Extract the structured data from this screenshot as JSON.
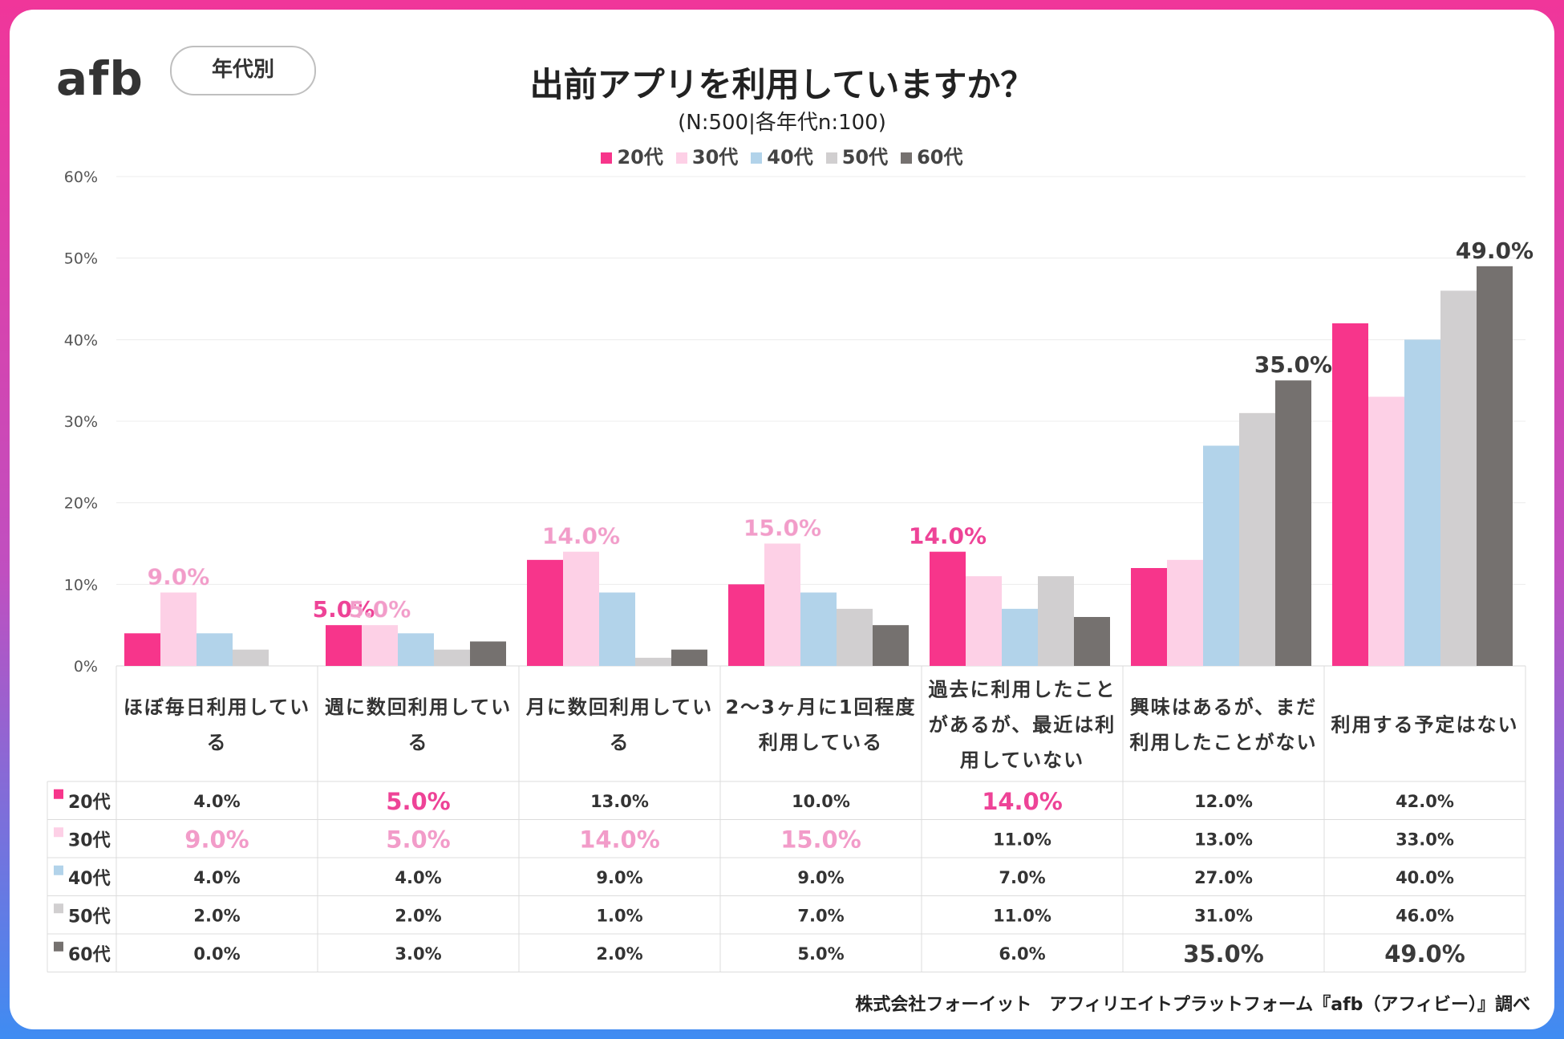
{
  "header": {
    "logo_text": "afb",
    "tag_label": "年代別",
    "title": "出前アプリを利用していますか？",
    "subtitle": "(N:500|各年代n:100)"
  },
  "credit": "株式会社フォーイット　アフィリエイトプラットフォーム『afb（アフィビー）』調べ",
  "colors": {
    "20代": "#f7358b",
    "30代": "#fdd0e6",
    "40代": "#b2d3ea",
    "50代": "#d1cfd0",
    "60代": "#75716f",
    "highlight_pink": "#ee4397",
    "highlight_light_pink": "#f29cc9",
    "highlight_dark": "#3a3a3a"
  },
  "chart_data": {
    "type": "bar",
    "title": "出前アプリを利用していますか？",
    "categories": [
      [
        "ほぼ毎日利用してい",
        "る"
      ],
      [
        "週に数回利用してい",
        "る"
      ],
      [
        "月に数回利用してい",
        "る"
      ],
      [
        "2～3ヶ月に1回程度",
        "利用している"
      ],
      [
        "過去に利用したこと",
        "があるが、最近は利",
        "用していない"
      ],
      [
        "興味はあるが、まだ",
        "利用したことがない"
      ],
      [
        "利用する予定はない"
      ]
    ],
    "series": [
      {
        "name": "20代",
        "values": [
          4.0,
          5.0,
          13.0,
          10.0,
          14.0,
          12.0,
          42.0
        ]
      },
      {
        "name": "30代",
        "values": [
          9.0,
          5.0,
          14.0,
          15.0,
          11.0,
          13.0,
          33.0
        ]
      },
      {
        "name": "40代",
        "values": [
          4.0,
          4.0,
          9.0,
          9.0,
          7.0,
          27.0,
          40.0
        ]
      },
      {
        "name": "50代",
        "values": [
          2.0,
          2.0,
          1.0,
          7.0,
          11.0,
          31.0,
          46.0
        ]
      },
      {
        "name": "60代",
        "values": [
          0.0,
          3.0,
          2.0,
          5.0,
          6.0,
          35.0,
          49.0
        ]
      }
    ],
    "ylim": [
      0,
      60
    ],
    "yticks": [
      "0%",
      "10%",
      "20%",
      "30%",
      "40%",
      "50%",
      "60%"
    ],
    "highlight_labels": [
      {
        "category": 0,
        "series": 1,
        "text": "9.0%"
      },
      {
        "category": 1,
        "series": 0,
        "text": "5.0%"
      },
      {
        "category": 1,
        "series": 1,
        "text": "5.0%"
      },
      {
        "category": 2,
        "series": 1,
        "text": "14.0%"
      },
      {
        "category": 3,
        "series": 1,
        "text": "15.0%"
      },
      {
        "category": 4,
        "series": 0,
        "text": "14.0%"
      },
      {
        "category": 5,
        "series": 4,
        "text": "35.0%"
      },
      {
        "category": 6,
        "series": 4,
        "text": "49.0%"
      }
    ],
    "table_rows": [
      {
        "name": "20代",
        "cells": [
          "4.0%",
          "5.0%",
          "13.0%",
          "10.0%",
          "14.0%",
          "12.0%",
          "42.0%"
        ],
        "bold": [
          false,
          true,
          false,
          false,
          true,
          false,
          false
        ]
      },
      {
        "name": "30代",
        "cells": [
          "9.0%",
          "5.0%",
          "14.0%",
          "15.0%",
          "11.0%",
          "13.0%",
          "33.0%"
        ],
        "bold": [
          true,
          true,
          true,
          true,
          false,
          false,
          false
        ]
      },
      {
        "name": "40代",
        "cells": [
          "4.0%",
          "4.0%",
          "9.0%",
          "9.0%",
          "7.0%",
          "27.0%",
          "40.0%"
        ],
        "bold": [
          false,
          false,
          false,
          false,
          false,
          false,
          false
        ]
      },
      {
        "name": "50代",
        "cells": [
          "2.0%",
          "2.0%",
          "1.0%",
          "7.0%",
          "11.0%",
          "31.0%",
          "46.0%"
        ],
        "bold": [
          false,
          false,
          false,
          false,
          false,
          false,
          false
        ]
      },
      {
        "name": "60代",
        "cells": [
          "0.0%",
          "3.0%",
          "2.0%",
          "5.0%",
          "6.0%",
          "35.0%",
          "49.0%"
        ],
        "bold": [
          false,
          false,
          false,
          false,
          false,
          true,
          true
        ]
      }
    ]
  }
}
